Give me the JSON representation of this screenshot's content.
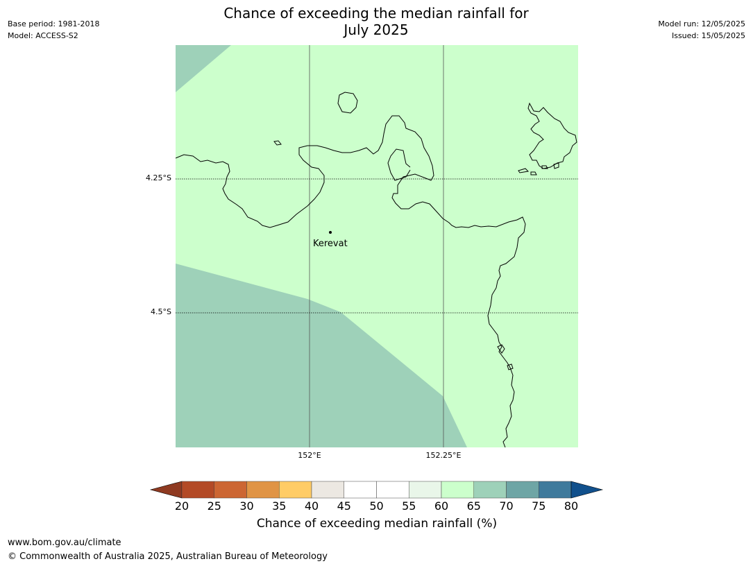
{
  "header": {
    "title_line1": "Chance of exceeding the median rainfall for",
    "title_line2": "July 2025",
    "base_period": "Base period: 1981-2018",
    "model": "Model: ACCESS-S2",
    "model_run": "Model run: 12/05/2025",
    "issued": "Issued: 15/05/2025"
  },
  "map": {
    "lat_labels": [
      "4.25°S",
      "4.5°S"
    ],
    "lon_labels": [
      "152°E",
      "152.25°E"
    ],
    "place": {
      "name": "Kerevat"
    },
    "region_colors": {
      "band_60_65": "#ccffcc",
      "band_65_70": "#9ed1b9"
    }
  },
  "legend": {
    "title": "Chance of exceeding median rainfall (%)",
    "ticks": [
      "20",
      "25",
      "30",
      "35",
      "40",
      "45",
      "50",
      "55",
      "60",
      "65",
      "70",
      "75",
      "80"
    ],
    "colors": [
      "#8f3a21",
      "#b34a26",
      "#cc6633",
      "#e09445",
      "#ffcc66",
      "#ece8e2",
      "#ffffff",
      "#ffffff",
      "#e9f6e9",
      "#ccffcc",
      "#9ed1b9",
      "#6ea5a5",
      "#3f7a9c",
      "#11508c"
    ]
  },
  "footer": {
    "url": "www.bom.gov.au/climate",
    "copyright": "© Commonwealth of Australia 2025, Australian Bureau of Meteorology"
  }
}
